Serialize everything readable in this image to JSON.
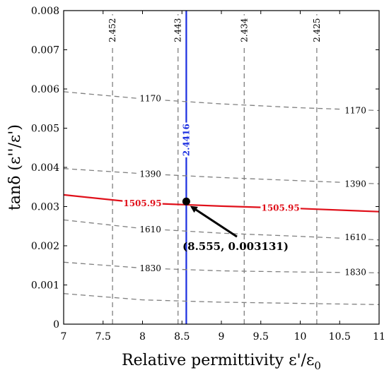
{
  "chart_data": {
    "type": "line",
    "xlabel": "Relative permittivity ε'/ε",
    "xlabel_subscript": "0",
    "ylabel": "tanδ (ε''/ε')",
    "xlim": [
      7,
      11
    ],
    "ylim": [
      0,
      0.008
    ],
    "x_ticks": [
      "7",
      "7.5",
      "8",
      "8.5",
      "9",
      "9.5",
      "10",
      "10.5",
      "11"
    ],
    "y_ticks": [
      "0",
      "0.001",
      "0.002",
      "0.003",
      "0.004",
      "0.005",
      "0.006",
      "0.007",
      "0.008"
    ],
    "x_tick_values": [
      7,
      7.5,
      8,
      8.5,
      9,
      9.5,
      10,
      10.5,
      11
    ],
    "y_tick_values": [
      0,
      0.001,
      0.002,
      0.003,
      0.004,
      0.005,
      0.006,
      0.007,
      0.008
    ],
    "grid": false,
    "series": [
      {
        "name": "2.452",
        "style": "dashed",
        "color": "#808080",
        "x": [
          7.62,
          7.62
        ],
        "y": [
          0,
          0.008
        ],
        "label_pos": [
          7.62,
          0.0075
        ],
        "label_rotate": -90,
        "label_color": "#000000"
      },
      {
        "name": "2.443",
        "style": "dashed",
        "color": "#808080",
        "x": [
          8.45,
          8.45
        ],
        "y": [
          0,
          0.008
        ],
        "label_pos": [
          8.45,
          0.0075
        ],
        "label_rotate": -90,
        "label_color": "#000000"
      },
      {
        "name": "2.434",
        "style": "dashed",
        "color": "#808080",
        "x": [
          9.29,
          9.29
        ],
        "y": [
          0,
          0.008
        ],
        "label_pos": [
          9.29,
          0.0075
        ],
        "label_rotate": -90,
        "label_color": "#000000"
      },
      {
        "name": "2.425",
        "style": "dashed",
        "color": "#808080",
        "x": [
          10.21,
          10.21
        ],
        "y": [
          0,
          0.008
        ],
        "label_pos": [
          10.21,
          0.0075
        ],
        "label_rotate": -90,
        "label_color": "#000000"
      },
      {
        "name": "2.4416",
        "style": "solid",
        "color": "#1a2ee0",
        "x": [
          8.555,
          8.555
        ],
        "y": [
          0,
          0.008
        ],
        "label_pos": [
          8.555,
          0.0047
        ],
        "label_rotate": -90,
        "label_color": "#1a2ee0"
      },
      {
        "name": "1170",
        "style": "dashed",
        "color": "#808080",
        "x": [
          7,
          8,
          9,
          10,
          11
        ],
        "y": [
          0.00593,
          0.00575,
          0.00562,
          0.00552,
          0.00545
        ],
        "labels": [
          [
            8.1,
            0.00576
          ],
          [
            10.7,
            0.00545
          ]
        ],
        "label_color": "#000000"
      },
      {
        "name": "1390",
        "style": "dashed",
        "color": "#808080",
        "x": [
          7,
          8,
          9,
          10,
          11
        ],
        "y": [
          0.00397,
          0.00384,
          0.00374,
          0.00366,
          0.00358
        ],
        "labels": [
          [
            8.1,
            0.00383
          ],
          [
            10.7,
            0.00358
          ]
        ],
        "label_color": "#000000"
      },
      {
        "name": "1505.95",
        "style": "solid",
        "color": "#e0101a",
        "x": [
          7,
          8,
          9,
          10,
          11
        ],
        "y": [
          0.0033,
          0.00309,
          0.00301,
          0.00295,
          0.00287
        ],
        "labels": [
          [
            8.0,
            0.00308
          ],
          [
            9.75,
            0.00296
          ]
        ],
        "label_color": "#e0101a"
      },
      {
        "name": "1610",
        "style": "dashed",
        "color": "#808080",
        "x": [
          7,
          8,
          9,
          10,
          11
        ],
        "y": [
          0.00266,
          0.00244,
          0.00232,
          0.00224,
          0.00215
        ],
        "labels": [
          [
            8.1,
            0.00241
          ],
          [
            10.7,
            0.00222
          ]
        ],
        "label_color": "#000000"
      },
      {
        "name": "1830",
        "style": "dashed",
        "color": "#808080",
        "x": [
          7,
          8,
          9,
          10,
          11
        ],
        "y": [
          0.00158,
          0.00143,
          0.00136,
          0.00133,
          0.00131
        ],
        "labels": [
          [
            8.1,
            0.00142
          ],
          [
            10.7,
            0.00132
          ]
        ],
        "label_color": "#000000"
      },
      {
        "name": "",
        "style": "dashed",
        "color": "#808080",
        "x": [
          7,
          8,
          9,
          10,
          11
        ],
        "y": [
          0.00078,
          0.00062,
          0.00056,
          0.00053,
          0.0005
        ],
        "labels": [],
        "label_color": "#000000"
      }
    ],
    "marker": {
      "x": 8.555,
      "y": 0.003131,
      "color": "#000000",
      "annotation": "(8.555, 0.003131)",
      "annotation_pos": [
        9.0,
        0.00198
      ]
    }
  }
}
